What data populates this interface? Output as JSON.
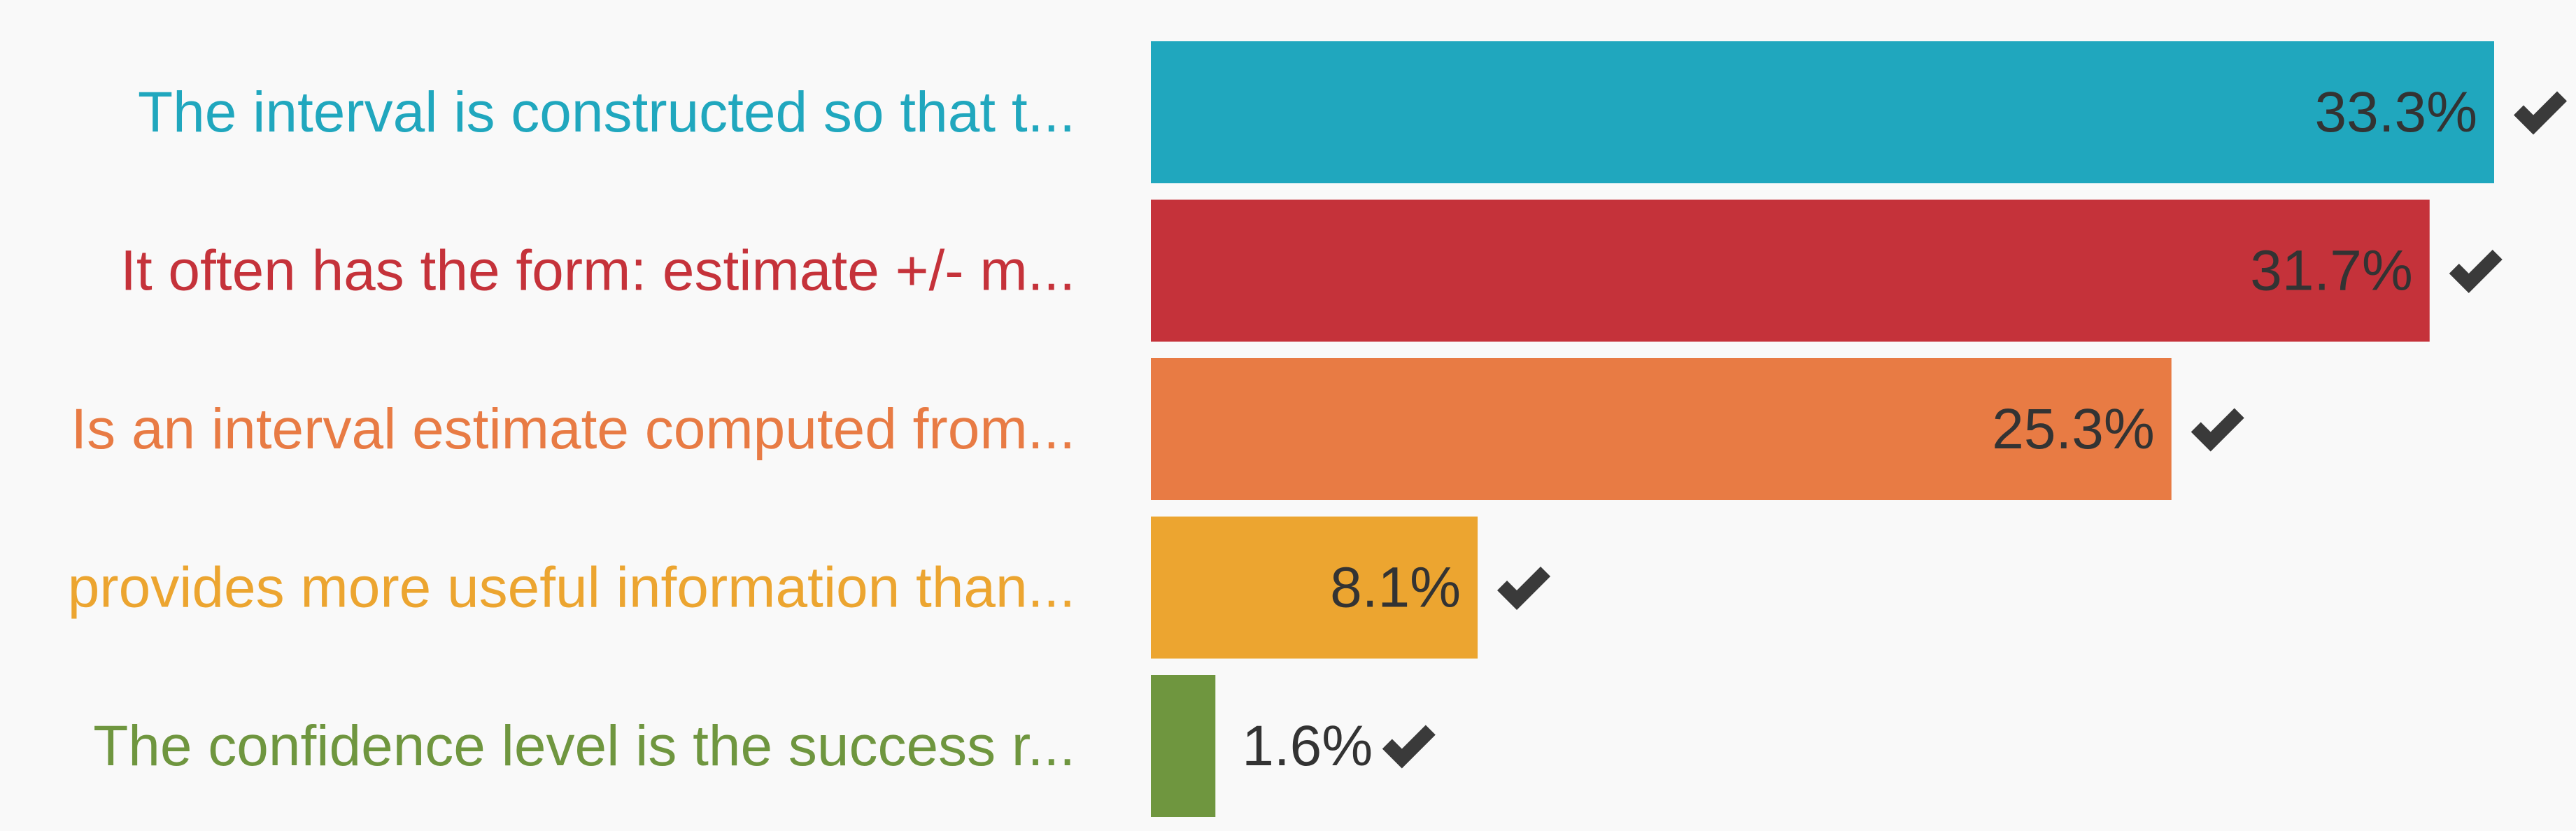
{
  "chart_data": {
    "type": "bar",
    "orientation": "horizontal",
    "grid": false,
    "xlim": [
      0,
      33.3
    ],
    "categories": [
      "The interval is constructed so that t...",
      "It often has the form: estimate +/- m...",
      "Is an interval estimate computed from...",
      "provides more useful information than...",
      "The confidence level is the success r..."
    ],
    "values": [
      33.3,
      31.7,
      25.3,
      8.1,
      1.6
    ],
    "value_labels": [
      "33.3%",
      "31.7%",
      "25.3%",
      "8.1%",
      "1.6%"
    ],
    "correct": [
      true,
      true,
      true,
      true,
      true
    ],
    "colors": [
      "#20a7be",
      "#c5323a",
      "#e87b44",
      "#eca530",
      "#6f963f"
    ],
    "check_icon": "check-icon"
  }
}
